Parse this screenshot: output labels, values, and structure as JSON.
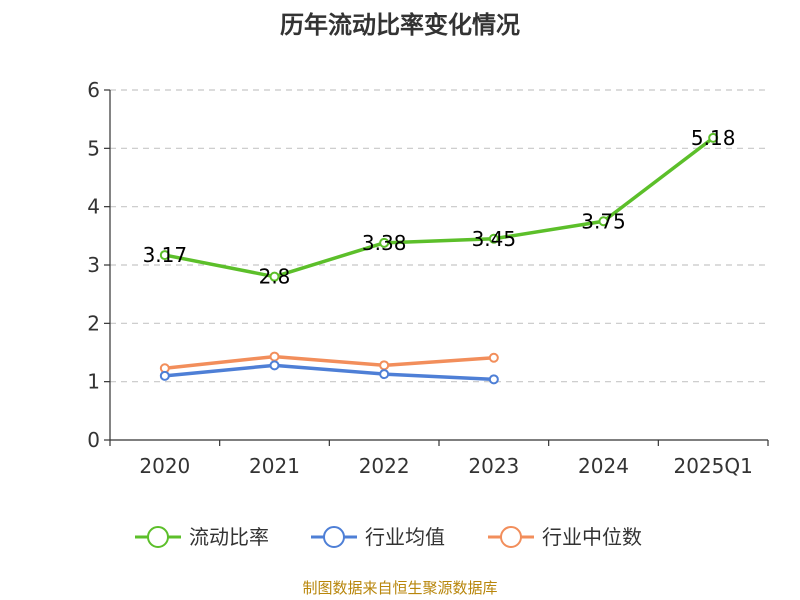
{
  "chart_data": {
    "type": "line",
    "title": "历年流动比率变化情况",
    "categories": [
      "2020",
      "2021",
      "2022",
      "2023",
      "2024",
      "2025Q1"
    ],
    "ylim": [
      0,
      6
    ],
    "yticks": [
      0,
      1,
      2,
      3,
      4,
      5,
      6
    ],
    "grid": true,
    "legend_position": "bottom",
    "series": [
      {
        "name": "流动比率",
        "color": "#5cbf2a",
        "values": [
          3.17,
          2.8,
          3.38,
          3.45,
          3.75,
          5.18
        ],
        "labels": [
          "3.17",
          "2.8",
          "3.38",
          "3.45",
          "3.75",
          "5.18"
        ]
      },
      {
        "name": "行业均值",
        "color": "#4e7fd6",
        "values": [
          1.1,
          1.28,
          1.13,
          1.04,
          null,
          null
        ]
      },
      {
        "name": "行业中位数",
        "color": "#f28e5b",
        "values": [
          1.23,
          1.43,
          1.28,
          1.41,
          null,
          null
        ]
      }
    ]
  },
  "source": "制图数据来自恒生聚源数据库"
}
